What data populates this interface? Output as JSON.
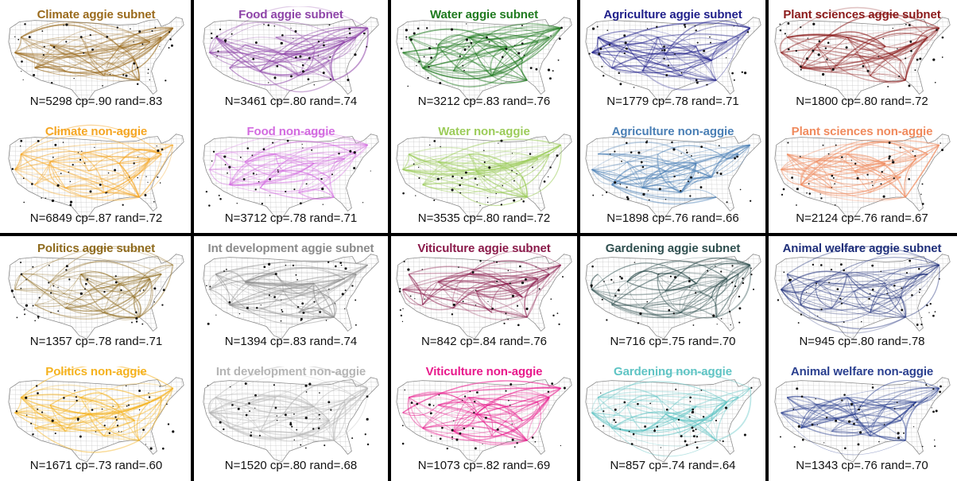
{
  "blocks": [
    {
      "panels": [
        {
          "title": "Climate aggie subnet",
          "stats": "N=5298 cp=.90 rand=.83",
          "color": "#9a6a1c"
        },
        {
          "title": "Food aggie subnet",
          "stats": "N=3461 cp=.80 rand=.74",
          "color": "#8e44a8"
        },
        {
          "title": "Water aggie subnet",
          "stats": "N=3212 cp=.83 rand=.76",
          "color": "#1f7a1f"
        },
        {
          "title": "Agriculture aggie subnet",
          "stats": "N=1779 cp=.78 rand=.71",
          "color": "#1f1f8a"
        },
        {
          "title": "Plant sciences aggie subnet",
          "stats": "N=1800 cp=.80 rand=.72",
          "color": "#8b1a1a"
        }
      ]
    },
    {
      "panels": [
        {
          "title": "Climate non-aggie",
          "stats": "N=6849 cp=.87 rand=.72",
          "color": "#f5a623"
        },
        {
          "title": "Food non-aggie",
          "stats": "N=3712 cp=.78 rand=.71",
          "color": "#d36be0"
        },
        {
          "title": "Water non-aggie",
          "stats": "N=3535 cp=.80 rand=.72",
          "color": "#9ccc5a"
        },
        {
          "title": "Agriculture non-aggie",
          "stats": "N=1898 cp=.76 rand=.66",
          "color": "#4a7fb5"
        },
        {
          "title": "Plant sciences non-aggie",
          "stats": "N=2124 cp=.76 rand=.67",
          "color": "#f08a5d"
        }
      ]
    },
    {
      "panels": [
        {
          "title": "Politics aggie subnet",
          "stats": "N=1357 cp=.78 rand=.71",
          "color": "#8f6b1e"
        },
        {
          "title": "Int development aggie subnet",
          "stats": "N=1394 cp=.83 rand=.74",
          "color": "#8a8a8a"
        },
        {
          "title": "Viticulture aggie subnet",
          "stats": "N=842 cp=.84 rand=.76",
          "color": "#8a1a4a"
        },
        {
          "title": "Gardening aggie subnet",
          "stats": "N=716 cp=.75 rand=.70",
          "color": "#2f4f4f"
        },
        {
          "title": "Animal welfare aggie subnet",
          "stats": "N=945 cp=.80 rand=.78",
          "color": "#1f2f7a"
        }
      ]
    },
    {
      "panels": [
        {
          "title": "Politics non-aggie",
          "stats": "N=1671 cp=.73 rand=.60",
          "color": "#f5b21e"
        },
        {
          "title": "Int development non-aggie",
          "stats": "N=1520 cp=.80 rand=.68",
          "color": "#b5b5b5"
        },
        {
          "title": "Viticulture non-aggie",
          "stats": "N=1073 cp=.82 rand=.69",
          "color": "#e8198b"
        },
        {
          "title": "Gardening non-aggie",
          "stats": "N=857 cp=.74 rand=.64",
          "color": "#5fc4c4"
        },
        {
          "title": "Animal welfare non-aggie",
          "stats": "N=1343 cp=.76 rand=.70",
          "color": "#2a3f8f"
        }
      ]
    }
  ]
}
